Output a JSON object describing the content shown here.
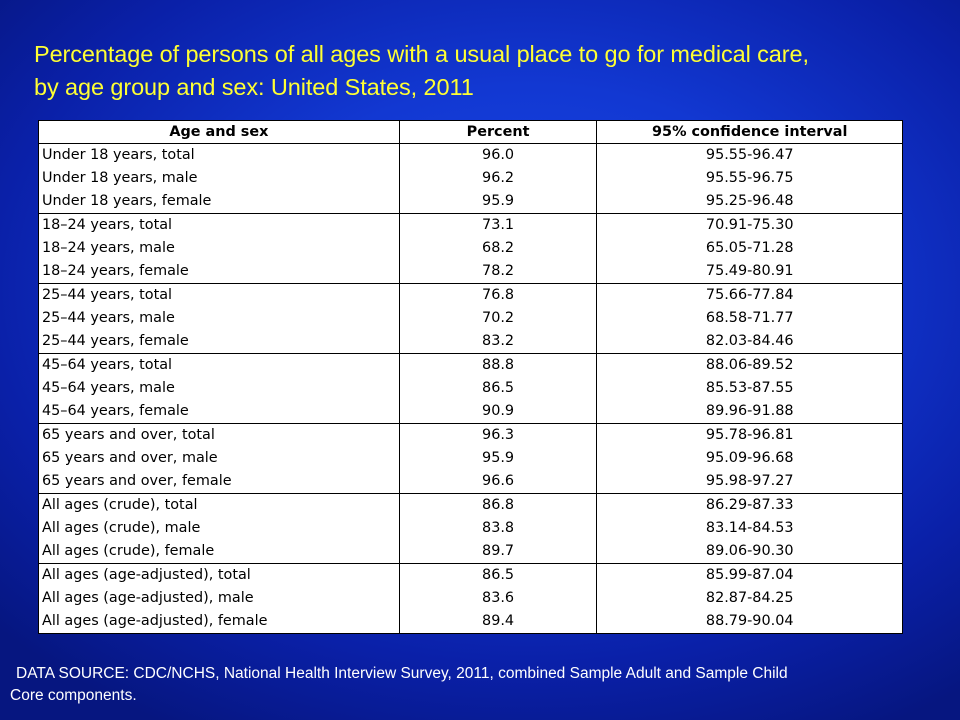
{
  "title": {
    "line1": "Percentage of persons of all ages with a usual place to go for medical care,",
    "line2": "by age group and sex: United States, 2011"
  },
  "chart_data": {
    "type": "table",
    "columns": [
      "Age and sex",
      "Percent",
      "95% confidence interval"
    ],
    "rows": [
      [
        "Under 18 years, total",
        "96.0",
        "95.55-96.47"
      ],
      [
        "Under 18 years, male",
        "96.2",
        "95.55-96.75"
      ],
      [
        "Under 18 years, female",
        "95.9",
        "95.25-96.48"
      ],
      [
        "18–24 years, total",
        "73.1",
        "70.91-75.30"
      ],
      [
        "18–24 years, male",
        "68.2",
        "65.05-71.28"
      ],
      [
        "18–24 years, female",
        "78.2",
        "75.49-80.91"
      ],
      [
        "25–44 years, total",
        "76.8",
        "75.66-77.84"
      ],
      [
        "25–44 years, male",
        "70.2",
        "68.58-71.77"
      ],
      [
        "25–44 years, female",
        "83.2",
        "82.03-84.46"
      ],
      [
        "45–64 years, total",
        "88.8",
        "88.06-89.52"
      ],
      [
        "45–64 years, male",
        "86.5",
        "85.53-87.55"
      ],
      [
        "45–64 years, female",
        "90.9",
        "89.96-91.88"
      ],
      [
        "65 years and over, total",
        "96.3",
        "95.78-96.81"
      ],
      [
        "65 years and over, male",
        "95.9",
        "95.09-96.68"
      ],
      [
        "65 years and over, female",
        "96.6",
        "95.98-97.27"
      ],
      [
        "All ages (crude), total",
        "86.8",
        "86.29-87.33"
      ],
      [
        "All ages (crude), male",
        "83.8",
        "83.14-84.53"
      ],
      [
        "All ages (crude), female",
        "89.7",
        "89.06-90.30"
      ],
      [
        "All ages (age-adjusted), total",
        "86.5",
        "85.99-87.04"
      ],
      [
        "All ages (age-adjusted), male",
        "83.6",
        "82.87-84.25"
      ],
      [
        "All ages (age-adjusted), female",
        "89.4",
        "88.79-90.04"
      ]
    ]
  },
  "source": {
    "line1": "DATA SOURCE: CDC/NCHS, National Health Interview Survey, 2011, combined Sample Adult and Sample Child",
    "line2": "Core components."
  },
  "colors": {
    "background": "#1238d2",
    "title": "#ffff33",
    "source_text": "#ffffff",
    "table_background": "#ffffff"
  }
}
